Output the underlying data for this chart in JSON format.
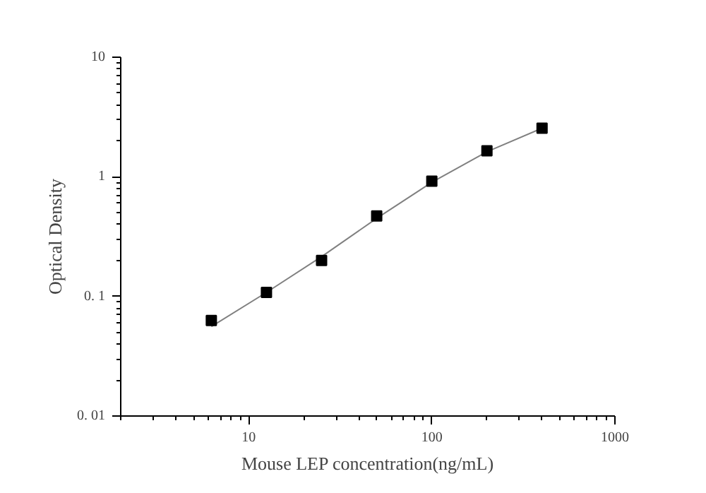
{
  "chart_data": {
    "type": "scatter",
    "xlabel": "Mouse LEP concentration(ng/mL)",
    "ylabel": "Optical Density",
    "log": "xy",
    "xlim": [
      2,
      1000
    ],
    "ylim": [
      0.01,
      10
    ],
    "xticks": [
      10,
      100,
      1000
    ],
    "yticks": [
      {
        "value": 0.01,
        "label": "0. 01"
      },
      {
        "value": 0.1,
        "label": "0. 1"
      },
      1,
      10
    ],
    "grid": false,
    "marker": "square",
    "series": [
      {
        "color": "#000000",
        "x": [
          6.25,
          12.5,
          25,
          50,
          100,
          200,
          400
        ],
        "values": [
          0.063,
          0.108,
          0.2,
          0.47,
          0.92,
          1.65,
          2.55
        ]
      },
      {
        "type": "line",
        "color": "#808080",
        "marker": "none",
        "line_style": "solid",
        "x": [
          6.25,
          12.5,
          25,
          50,
          100,
          200,
          400
        ],
        "values": [
          0.056,
          0.108,
          0.215,
          0.45,
          0.9,
          1.62,
          2.55
        ]
      }
    ]
  }
}
